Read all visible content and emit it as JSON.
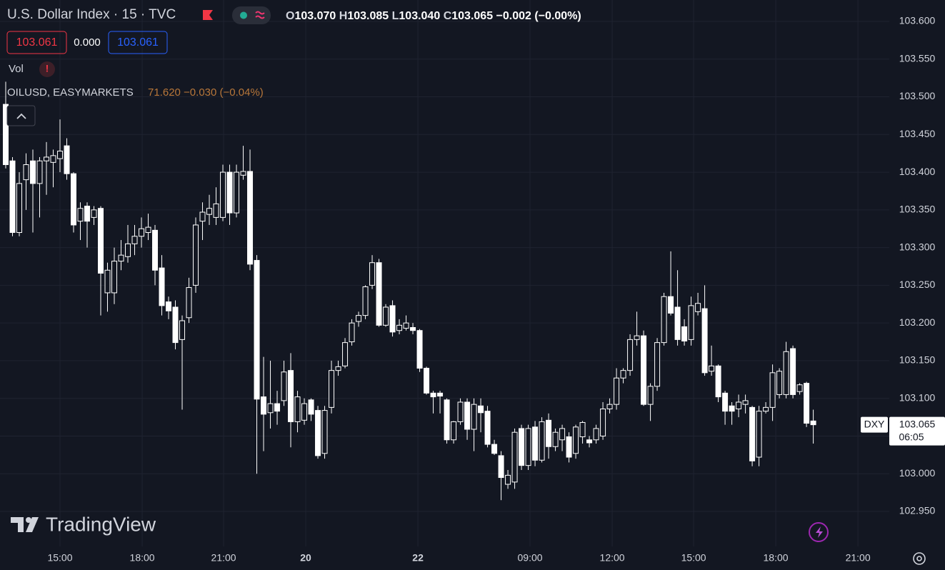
{
  "chart_data": {
    "type": "candlestick",
    "title": "U.S. Dollar Index · 15 · TVC",
    "ohlc_legend": [
      {
        "key": "O",
        "value": "103.070"
      },
      {
        "key": "H",
        "value": "103.085"
      },
      {
        "key": "L",
        "value": "103.040"
      },
      {
        "key": "C",
        "value": "103.065"
      }
    ],
    "change": "−0.002 (−0.00%)",
    "color": "#ffffff",
    "open": [
      103.49,
      103.415,
      103.32,
      103.39,
      103.415,
      103.385,
      103.415,
      103.413,
      103.418,
      103.435,
      103.398,
      103.335,
      103.355,
      103.34,
      103.352,
      103.24,
      103.24,
      103.282,
      103.288,
      103.305,
      103.315,
      103.32,
      103.323,
      103.273,
      103.228,
      103.221,
      103.178,
      103.207,
      103.25,
      103.335,
      103.344,
      103.34,
      103.34,
      103.4,
      103.346,
      103.396,
      103.401,
      103.283,
      103.102,
      103.081,
      103.093,
      103.097,
      103.137,
      103.069,
      103.071,
      103.098,
      103.084,
      103.027,
      103.088,
      103.137,
      103.143,
      103.175,
      103.202,
      103.21,
      103.25,
      103.28,
      103.197,
      103.223,
      103.19,
      103.193,
      103.194,
      103.19,
      103.14,
      103.107,
      103.107,
      103.098,
      103.045,
      103.069,
      103.095,
      103.059,
      103.09,
      103.083,
      103.039,
      103.024,
      102.986,
      102.989,
      103.06,
      103.011,
      103.062,
      103.018,
      103.071,
      103.036,
      103.045,
      103.049,
      103.027,
      103.049,
      103.045,
      103.045,
      103.05,
      103.086,
      103.092,
      103.127,
      103.137,
      103.178,
      103.183,
      103.092,
      103.116,
      103.174,
      103.235,
      103.221,
      103.195,
      103.178,
      103.215,
      103.219,
      103.136,
      103.143,
      103.107,
      103.09,
      103.086,
      103.092,
      103.088,
      103.022,
      103.083,
      103.088,
      103.105,
      103.105,
      103.166,
      103.109,
      103.12,
      103.07
    ],
    "high": [
      103.52,
      103.42,
      103.4,
      103.425,
      103.43,
      103.42,
      103.44,
      103.43,
      103.47,
      103.445,
      103.4,
      103.36,
      103.36,
      103.355,
      103.355,
      103.28,
      103.3,
      103.31,
      103.33,
      103.33,
      103.34,
      103.345,
      103.33,
      103.29,
      103.235,
      103.23,
      103.21,
      103.26,
      103.34,
      103.36,
      103.37,
      103.38,
      103.41,
      103.41,
      103.41,
      103.435,
      103.43,
      103.29,
      103.155,
      103.15,
      103.11,
      103.15,
      103.16,
      103.11,
      103.1,
      103.1,
      103.09,
      103.09,
      103.15,
      103.15,
      103.18,
      103.205,
      103.215,
      103.25,
      103.29,
      103.285,
      103.225,
      103.23,
      103.205,
      103.21,
      103.2,
      103.192,
      103.142,
      103.11,
      103.11,
      103.1,
      103.07,
      103.1,
      103.1,
      103.1,
      103.1,
      103.09,
      103.045,
      103.03,
      103.005,
      103.06,
      103.065,
      103.065,
      103.07,
      103.075,
      103.08,
      103.06,
      103.065,
      103.055,
      103.065,
      103.07,
      103.05,
      103.065,
      103.095,
      103.1,
      103.14,
      103.14,
      103.185,
      103.215,
      103.19,
      103.12,
      103.18,
      103.24,
      103.295,
      103.27,
      103.205,
      103.235,
      103.24,
      103.25,
      103.17,
      103.145,
      103.11,
      103.095,
      103.105,
      103.105,
      103.09,
      103.09,
      103.095,
      103.145,
      103.14,
      103.175,
      103.17,
      103.12,
      103.122,
      103.085
    ],
    "low": [
      103.405,
      103.315,
      103.315,
      103.35,
      103.32,
      103.34,
      103.37,
      103.38,
      103.4,
      103.39,
      103.32,
      103.31,
      103.3,
      103.33,
      103.21,
      103.215,
      103.225,
      103.27,
      103.28,
      103.29,
      103.3,
      103.31,
      103.25,
      103.21,
      103.205,
      103.165,
      103.085,
      103.2,
      103.24,
      103.31,
      103.33,
      103.33,
      103.335,
      103.33,
      103.34,
      103.39,
      103.27,
      103.0,
      103.03,
      103.06,
      103.065,
      103.09,
      103.035,
      103.055,
      103.065,
      103.07,
      103.02,
      103.02,
      103.08,
      103.13,
      103.14,
      103.17,
      103.195,
      103.205,
      103.245,
      103.195,
      103.195,
      103.182,
      103.185,
      103.19,
      103.185,
      103.135,
      103.105,
      103.08,
      103.08,
      103.04,
      103.04,
      103.065,
      103.045,
      103.03,
      103.055,
      103.035,
      103.025,
      102.965,
      102.98,
      102.98,
      103.005,
      103.005,
      103.01,
      103.015,
      103.02,
      103.03,
      103.03,
      103.015,
      103.02,
      103.04,
      103.035,
      103.04,
      103.045,
      103.08,
      103.085,
      103.12,
      103.13,
      103.17,
      103.09,
      103.07,
      103.11,
      103.17,
      103.21,
      103.17,
      103.17,
      103.17,
      103.21,
      103.13,
      103.13,
      103.095,
      103.065,
      103.065,
      103.075,
      103.08,
      103.01,
      103.01,
      103.08,
      103.07,
      103.1,
      103.1,
      103.1,
      103.105,
      103.062,
      103.04
    ],
    "close": [
      103.41,
      103.32,
      103.385,
      103.41,
      103.385,
      103.415,
      103.42,
      103.422,
      103.428,
      103.398,
      103.33,
      103.352,
      103.335,
      103.35,
      103.266,
      103.27,
      103.282,
      103.29,
      103.305,
      103.315,
      103.325,
      103.327,
      103.27,
      103.223,
      103.216,
      103.174,
      103.203,
      103.247,
      103.33,
      103.347,
      103.352,
      103.358,
      103.4,
      103.346,
      103.4,
      103.401,
      103.278,
      103.099,
      103.079,
      103.093,
      103.083,
      103.135,
      103.069,
      103.102,
      103.093,
      103.079,
      103.024,
      103.084,
      103.137,
      103.142,
      103.174,
      103.2,
      103.21,
      103.248,
      103.28,
      103.197,
      103.221,
      103.188,
      103.197,
      103.2,
      103.19,
      103.14,
      103.107,
      103.102,
      103.103,
      103.045,
      103.069,
      103.095,
      103.059,
      103.092,
      103.081,
      103.039,
      103.027,
      102.995,
      102.998,
      103.055,
      103.011,
      103.06,
      103.018,
      103.069,
      103.036,
      103.055,
      103.06,
      103.022,
      103.062,
      103.068,
      103.041,
      103.06,
      103.086,
      103.092,
      103.127,
      103.137,
      103.178,
      103.183,
      103.092,
      103.116,
      103.174,
      103.235,
      103.213,
      103.178,
      103.176,
      103.223,
      103.226,
      103.134,
      103.143,
      103.102,
      103.083,
      103.083,
      103.095,
      103.097,
      103.017,
      103.083,
      103.088,
      103.134,
      103.136,
      103.162,
      103.105,
      103.118,
      103.067,
      103.065
    ],
    "ylim": [
      102.9036,
      103.6284
    ],
    "yticks": [
      {
        "value": 103.6,
        "label": "103.600"
      },
      {
        "value": 103.55,
        "label": "103.550"
      },
      {
        "value": 103.5,
        "label": "103.500"
      },
      {
        "value": 103.45,
        "label": "103.450"
      },
      {
        "value": 103.4,
        "label": "103.400"
      },
      {
        "value": 103.35,
        "label": "103.350"
      },
      {
        "value": 103.3,
        "label": "103.300"
      },
      {
        "value": 103.25,
        "label": "103.250"
      },
      {
        "value": 103.2,
        "label": "103.200"
      },
      {
        "value": 103.15,
        "label": "103.150"
      },
      {
        "value": 103.1,
        "label": "103.100"
      },
      {
        "value": 103.05,
        "label": "103.050"
      },
      {
        "value": 103.0,
        "label": "103.000"
      },
      {
        "value": 102.95,
        "label": "102.950"
      }
    ],
    "xlim": [
      -0.842,
      130.2
    ],
    "xticks": [
      {
        "value": 8,
        "label": "15:00"
      },
      {
        "value": 20.11,
        "label": "18:00"
      },
      {
        "value": 32.11,
        "label": "21:00"
      },
      {
        "value": 44.21,
        "label": "20"
      },
      {
        "value": 60.74,
        "label": "22"
      },
      {
        "value": 77.26,
        "label": "09:00"
      },
      {
        "value": 89.37,
        "label": "12:00"
      },
      {
        "value": 101.37,
        "label": "15:00"
      },
      {
        "value": 113.47,
        "label": "18:00"
      },
      {
        "value": 125.58,
        "label": "21:00"
      }
    ],
    "grid": true,
    "last_price_tag": "DXY",
    "last_price_label": "103.065",
    "countdown": "06:05"
  },
  "ui": {
    "bid": "103.061",
    "spread": "0.000",
    "ask": "103.061",
    "vol": "Vol",
    "overlay_symbol": "OILUSD, EASYMARKETS",
    "overlay_quote": "71.620  −0.030 (−0.04%)",
    "watermark": "TradingView"
  }
}
